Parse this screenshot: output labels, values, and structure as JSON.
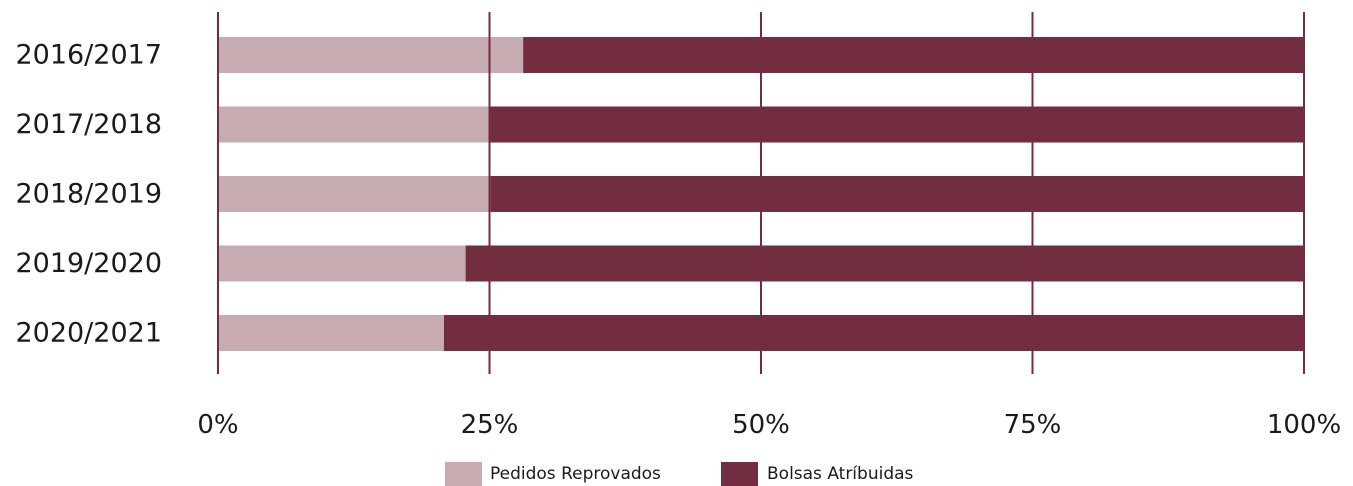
{
  "chart_data": {
    "type": "bar",
    "orientation": "horizontal",
    "stacked": "percent",
    "categories": [
      "2016/2017",
      "2017/2018",
      "2018/2019",
      "2019/2020",
      "2020/2021"
    ],
    "series": [
      {
        "name": "Pedidos Reprovados",
        "values": [
          28.1,
          25.0,
          25.1,
          22.8,
          20.8
        ],
        "color": "#c7abb2"
      },
      {
        "name": "Bolsas Atríbuidas",
        "values": [
          71.9,
          75.0,
          74.9,
          77.2,
          79.2
        ],
        "color": "#722e40"
      }
    ],
    "xlim": [
      0,
      100
    ],
    "xticks": [
      "0%",
      "25%",
      "50%",
      "75%",
      "100%"
    ],
    "grid": "vertical",
    "gridline_color": "#722e40",
    "legend": "bottom-center"
  }
}
